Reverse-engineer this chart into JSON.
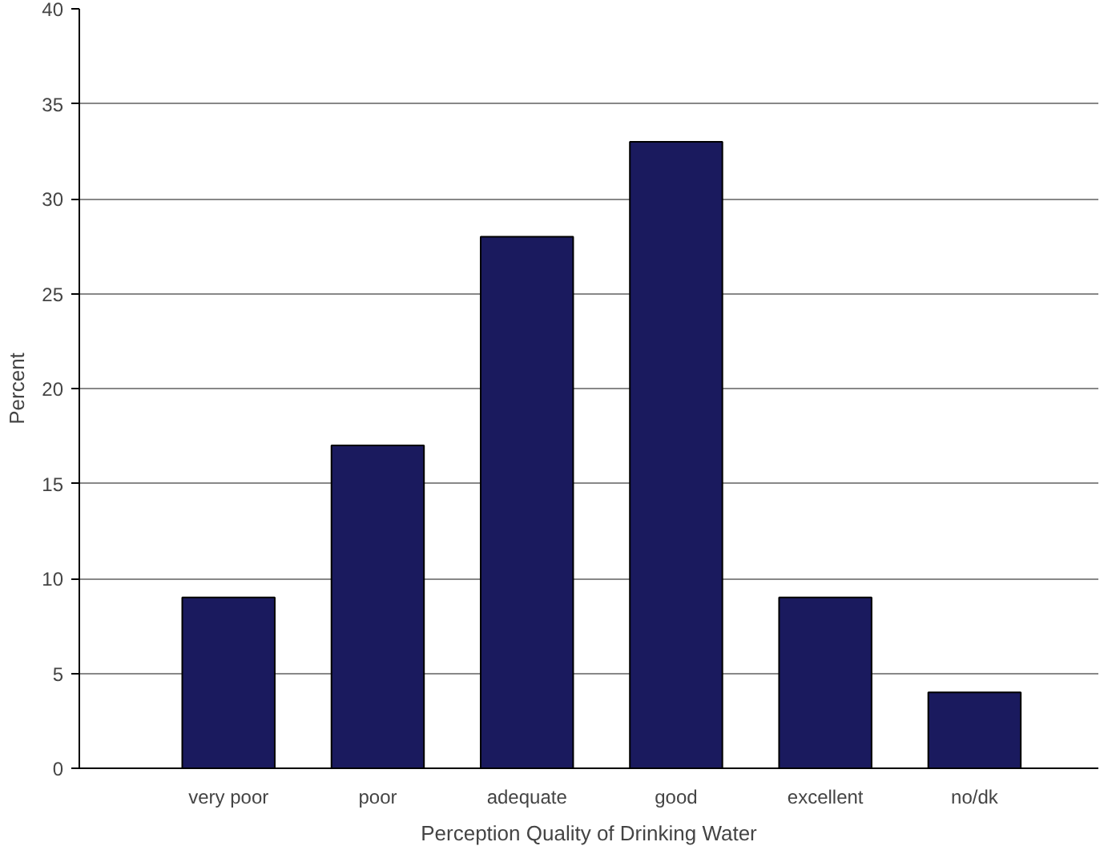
{
  "chart_data": {
    "type": "bar",
    "xlabel": "Perception Quality of Drinking Water",
    "ylabel": "Percent",
    "categories": [
      "very poor",
      "poor",
      "adequate",
      "good",
      "excellent",
      "no/dk"
    ],
    "values": [
      9,
      17,
      28,
      33,
      9,
      4
    ],
    "color": "#1a1a5e",
    "ylim": [
      0,
      40
    ],
    "yticks": [
      0,
      5,
      10,
      15,
      20,
      25,
      30,
      35,
      40
    ],
    "grid": "y"
  }
}
